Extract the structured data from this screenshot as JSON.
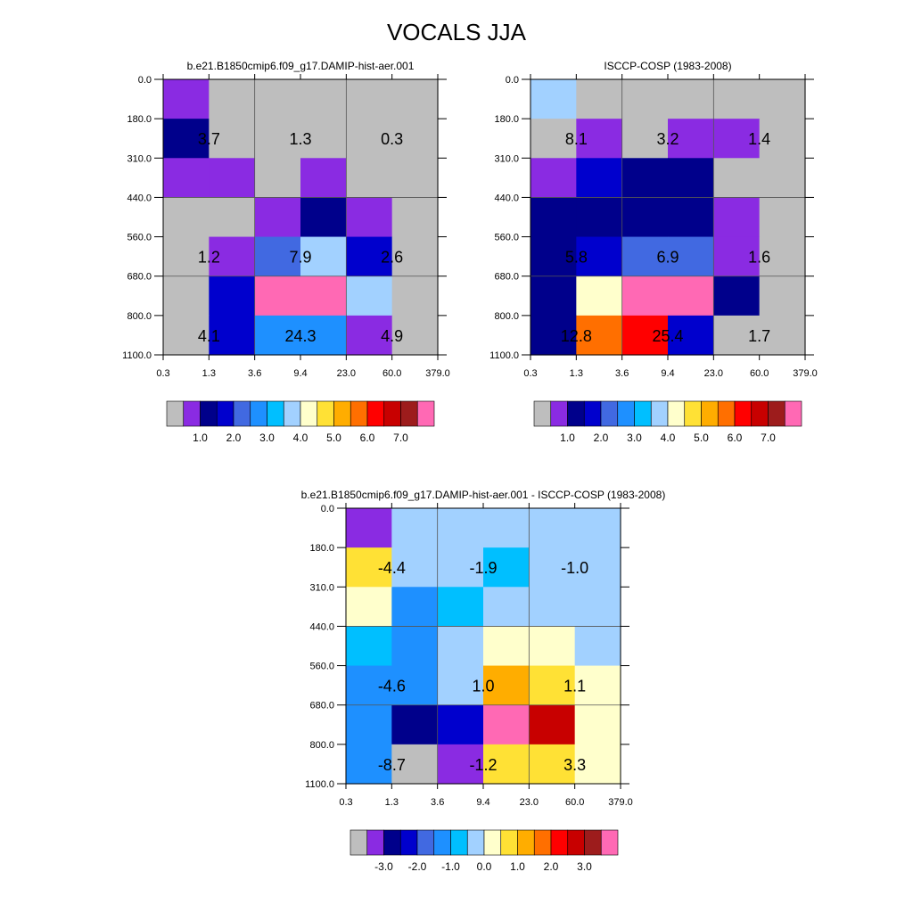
{
  "page": {
    "title": "VOCALS JJA"
  },
  "palette": {
    "colors": [
      "#bebebe",
      "#8a2be2",
      "#00008b",
      "#0000cd",
      "#4169e1",
      "#1e90ff",
      "#00bfff",
      "#a2d1ff",
      "#ffffcc",
      "#ffe135",
      "#ffad00",
      "#ff6f00",
      "#ff0000",
      "#c80000",
      "#9d1c1c",
      "#ff69b4"
    ]
  },
  "chart_data": [
    {
      "type": "heatmap",
      "title": "b.e21.B1850cmip6.f09_g17.DAMIP-hist-aer.001",
      "x_tick_labels": [
        "0.3",
        "1.3",
        "3.6",
        "9.4",
        "23.0",
        "60.0",
        "379.0"
      ],
      "y_tick_labels": [
        "0.0",
        "180.0",
        "310.0",
        "440.0",
        "560.0",
        "680.0",
        "800.0",
        "1100.0"
      ],
      "cell_color_index": [
        [
          1,
          0,
          0,
          0,
          0,
          0
        ],
        [
          2,
          0,
          0,
          0,
          0,
          0
        ],
        [
          1,
          1,
          0,
          1,
          0,
          0
        ],
        [
          0,
          0,
          1,
          2,
          1,
          0
        ],
        [
          0,
          1,
          4,
          7,
          3,
          0
        ],
        [
          0,
          3,
          15,
          15,
          7,
          0
        ],
        [
          0,
          3,
          5,
          5,
          1,
          0
        ]
      ],
      "cell_labels": [
        {
          "row": 1,
          "col": 1,
          "text": "3.7"
        },
        {
          "row": 1,
          "col": 3,
          "text": "1.3"
        },
        {
          "row": 1,
          "col": 5,
          "text": "0.3"
        },
        {
          "row": 4,
          "col": 1,
          "text": "1.2"
        },
        {
          "row": 4,
          "col": 3,
          "text": "7.9"
        },
        {
          "row": 4,
          "col": 5,
          "text": "2.6"
        },
        {
          "row": 6,
          "col": 1,
          "text": "4.1"
        },
        {
          "row": 6,
          "col": 3,
          "text": "24.3"
        },
        {
          "row": 6,
          "col": 5,
          "text": "4.9"
        }
      ],
      "colorbar": {
        "labels": [
          "1.0",
          "2.0",
          "3.0",
          "4.0",
          "5.0",
          "6.0",
          "7.0"
        ],
        "label_box_index": [
          2,
          4,
          6,
          8,
          10,
          12,
          14
        ]
      }
    },
    {
      "type": "heatmap",
      "title": "ISCCP-COSP (1983-2008)",
      "x_tick_labels": [
        "0.3",
        "1.3",
        "3.6",
        "9.4",
        "23.0",
        "60.0",
        "379.0"
      ],
      "y_tick_labels": [
        "0.0",
        "180.0",
        "310.0",
        "440.0",
        "560.0",
        "680.0",
        "800.0",
        "1100.0"
      ],
      "cell_color_index": [
        [
          7,
          0,
          0,
          0,
          0,
          0
        ],
        [
          0,
          1,
          0,
          1,
          1,
          0
        ],
        [
          1,
          3,
          2,
          2,
          0,
          0
        ],
        [
          2,
          2,
          2,
          2,
          1,
          0
        ],
        [
          2,
          3,
          4,
          4,
          1,
          0
        ],
        [
          2,
          8,
          15,
          15,
          2,
          0
        ],
        [
          2,
          11,
          12,
          3,
          0,
          0
        ]
      ],
      "cell_labels": [
        {
          "row": 1,
          "col": 1,
          "text": "8.1"
        },
        {
          "row": 1,
          "col": 3,
          "text": "3.2"
        },
        {
          "row": 1,
          "col": 5,
          "text": "1.4"
        },
        {
          "row": 4,
          "col": 1,
          "text": "5.8"
        },
        {
          "row": 4,
          "col": 3,
          "text": "6.9"
        },
        {
          "row": 4,
          "col": 5,
          "text": "1.6"
        },
        {
          "row": 6,
          "col": 1,
          "text": "12.8"
        },
        {
          "row": 6,
          "col": 3,
          "text": "25.4"
        },
        {
          "row": 6,
          "col": 5,
          "text": "1.7"
        }
      ],
      "colorbar": {
        "labels": [
          "1.0",
          "2.0",
          "3.0",
          "4.0",
          "5.0",
          "6.0",
          "7.0"
        ],
        "label_box_index": [
          2,
          4,
          6,
          8,
          10,
          12,
          14
        ]
      }
    },
    {
      "type": "heatmap",
      "title": "b.e21.B1850cmip6.f09_g17.DAMIP-hist-aer.001 - ISCCP-COSP (1983-2008)",
      "x_tick_labels": [
        "0.3",
        "1.3",
        "3.6",
        "9.4",
        "23.0",
        "60.0",
        "379.0"
      ],
      "y_tick_labels": [
        "0.0",
        "180.0",
        "310.0",
        "440.0",
        "560.0",
        "680.0",
        "800.0",
        "1100.0"
      ],
      "cell_color_index": [
        [
          1,
          7,
          7,
          7,
          7,
          7
        ],
        [
          9,
          7,
          7,
          6,
          7,
          7
        ],
        [
          8,
          5,
          6,
          7,
          7,
          7
        ],
        [
          6,
          5,
          7,
          8,
          8,
          7
        ],
        [
          5,
          5,
          7,
          10,
          9,
          8
        ],
        [
          5,
          2,
          3,
          15,
          13,
          8
        ],
        [
          5,
          0,
          1,
          9,
          9,
          8
        ]
      ],
      "cell_labels": [
        {
          "row": 1,
          "col": 1,
          "text": "-4.4"
        },
        {
          "row": 1,
          "col": 3,
          "text": "-1.9"
        },
        {
          "row": 1,
          "col": 5,
          "text": "-1.0"
        },
        {
          "row": 4,
          "col": 1,
          "text": "-4.6"
        },
        {
          "row": 4,
          "col": 3,
          "text": "1.0"
        },
        {
          "row": 4,
          "col": 5,
          "text": "1.1"
        },
        {
          "row": 6,
          "col": 1,
          "text": "-8.7"
        },
        {
          "row": 6,
          "col": 3,
          "text": "-1.2"
        },
        {
          "row": 6,
          "col": 5,
          "text": "3.3"
        }
      ],
      "colorbar": {
        "labels": [
          "-3.0",
          "-2.0",
          "-1.0",
          "0.0",
          "1.0",
          "2.0",
          "3.0"
        ],
        "label_box_index": [
          2,
          4,
          6,
          8,
          10,
          12,
          14
        ]
      }
    }
  ]
}
